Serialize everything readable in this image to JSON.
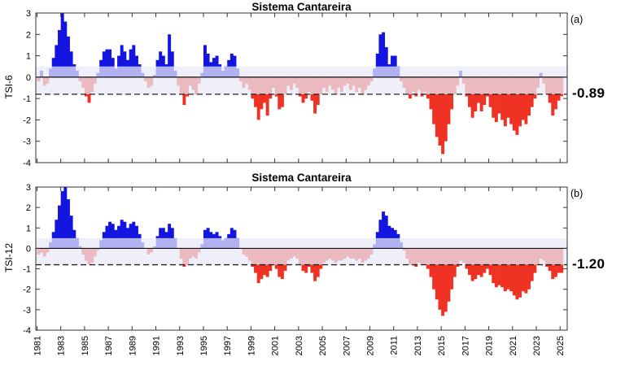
{
  "figure": {
    "background": "#ffffff"
  },
  "chart_data": [
    {
      "type": "bar",
      "panel_id": "a",
      "title": "Sistema Cantareira",
      "panel_label": "(a)",
      "ylabel": "TSI-6",
      "current_value_label": "-0.89",
      "ylim": [
        -4,
        3
      ],
      "yticks": [
        3,
        2,
        1,
        0,
        -1,
        -2,
        -3,
        -4
      ],
      "xlim": [
        1980.9,
        2025.6
      ],
      "xticks": [
        1981,
        1983,
        1985,
        1987,
        1989,
        1991,
        1993,
        1995,
        1997,
        1999,
        2001,
        2003,
        2005,
        2007,
        2009,
        2011,
        2013,
        2015,
        2017,
        2019,
        2021,
        2023,
        2025
      ],
      "x_start": 1981.0,
      "x_step": 0.25,
      "band": [
        -0.8,
        0.5
      ],
      "threshold": -0.8,
      "colors": {
        "positive": "#1414e0",
        "negative": "#f03224",
        "band": "#e9e9f8",
        "threshold": "#222222"
      },
      "values": [
        -0.2,
        0.3,
        -0.4,
        -0.3,
        0.4,
        0.9,
        1.5,
        2.2,
        3.0,
        2.6,
        1.9,
        1.2,
        0.6,
        0.3,
        -0.2,
        -0.5,
        -0.9,
        -1.2,
        -0.7,
        -0.3,
        0.2,
        0.8,
        1.2,
        1.3,
        1.3,
        0.9,
        0.4,
        1.0,
        1.5,
        1.2,
        0.8,
        1.3,
        1.5,
        1.0,
        0.6,
        0.2,
        -0.2,
        -0.5,
        -0.4,
        0.1,
        0.8,
        1.2,
        1.0,
        0.6,
        2.0,
        1.2,
        0.3,
        -0.4,
        -0.8,
        -1.3,
        -0.9,
        -0.4,
        -0.6,
        -0.8,
        -0.3,
        0.2,
        1.5,
        1.1,
        0.7,
        0.9,
        1.0,
        0.6,
        0.3,
        0.5,
        0.8,
        1.1,
        1.0,
        0.4,
        -0.2,
        -0.5,
        -0.3,
        -0.6,
        -1.0,
        -1.4,
        -2.0,
        -1.5,
        -1.2,
        -1.8,
        -1.0,
        -0.5,
        -0.9,
        -1.5,
        -1.4,
        -0.8,
        -0.4,
        -0.6,
        -0.3,
        -0.5,
        -0.9,
        -1.2,
        -1.0,
        -0.7,
        -1.1,
        -1.7,
        -1.3,
        -0.8,
        -0.5,
        -0.7,
        -0.4,
        -0.6,
        -0.8,
        -0.5,
        -0.7,
        -0.4,
        -0.3,
        -0.6,
        -0.4,
        -0.7,
        -0.5,
        -0.8,
        -0.6,
        -0.4,
        -0.2,
        0.4,
        1.1,
        2.0,
        2.1,
        1.4,
        0.6,
        1.0,
        1.0,
        0.5,
        -0.2,
        -0.5,
        -0.8,
        -1.0,
        -0.7,
        -0.9,
        -0.6,
        -0.9,
        -0.7,
        -1.0,
        -1.5,
        -2.2,
        -2.8,
        -3.2,
        -3.6,
        -3.0,
        -2.2,
        -1.5,
        -0.8,
        -0.4,
        0.3,
        -0.3,
        -0.9,
        -1.4,
        -1.9,
        -1.6,
        -1.2,
        -1.6,
        -1.3,
        -0.9,
        -1.4,
        -1.9,
        -2.1,
        -1.7,
        -2.0,
        -2.3,
        -1.9,
        -2.2,
        -2.5,
        -2.7,
        -2.3,
        -2.0,
        -2.2,
        -1.8,
        -1.4,
        -1.0,
        -0.5,
        0.2,
        -0.3,
        -0.8,
        -1.2,
        -1.8,
        -1.5,
        -1.1,
        -0.89
      ]
    },
    {
      "type": "bar",
      "panel_id": "b",
      "title": "Sistema Cantareira",
      "panel_label": "(b)",
      "ylabel": "TSI-12",
      "current_value_label": "-1.20",
      "ylim": [
        -4,
        3
      ],
      "yticks": [
        3,
        2,
        1,
        0,
        -1,
        -2,
        -3,
        -4
      ],
      "xlim": [
        1980.9,
        2025.6
      ],
      "xticks": [
        1981,
        1983,
        1985,
        1987,
        1989,
        1991,
        1993,
        1995,
        1997,
        1999,
        2001,
        2003,
        2005,
        2007,
        2009,
        2011,
        2013,
        2015,
        2017,
        2019,
        2021,
        2023,
        2025
      ],
      "x_start": 1981.0,
      "x_step": 0.25,
      "band": [
        -0.8,
        0.5
      ],
      "threshold": -0.8,
      "colors": {
        "positive": "#1414e0",
        "negative": "#f03224",
        "band": "#e9e9f8",
        "threshold": "#222222"
      },
      "values": [
        -0.3,
        -0.2,
        -0.4,
        -0.2,
        0.3,
        0.8,
        1.4,
        2.1,
        2.8,
        3.0,
        2.4,
        1.6,
        0.9,
        0.5,
        0.1,
        -0.3,
        -0.6,
        -0.8,
        -0.7,
        -0.4,
        -0.1,
        0.4,
        0.8,
        1.1,
        1.3,
        1.2,
        0.9,
        1.1,
        1.4,
        1.3,
        1.0,
        1.2,
        1.3,
        1.1,
        0.7,
        0.3,
        0.0,
        -0.3,
        -0.2,
        0.1,
        0.6,
        1.0,
        1.0,
        0.8,
        1.2,
        1.0,
        0.5,
        0.0,
        -0.5,
        -0.9,
        -0.8,
        -0.5,
        -0.4,
        -0.5,
        -0.2,
        0.2,
        0.9,
        1.0,
        0.8,
        0.7,
        0.8,
        0.6,
        0.4,
        0.5,
        0.7,
        1.0,
        0.9,
        0.5,
        0.0,
        -0.3,
        -0.4,
        -0.6,
        -0.9,
        -1.2,
        -1.7,
        -1.5,
        -1.3,
        -1.4,
        -1.1,
        -0.8,
        -1.0,
        -1.4,
        -1.5,
        -1.1,
        -0.6,
        -0.5,
        -0.4,
        -0.5,
        -0.8,
        -1.1,
        -1.2,
        -0.9,
        -1.2,
        -1.6,
        -1.4,
        -1.0,
        -0.7,
        -0.6,
        -0.5,
        -0.6,
        -0.7,
        -0.6,
        -0.6,
        -0.5,
        -0.4,
        -0.5,
        -0.5,
        -0.6,
        -0.5,
        -0.7,
        -0.6,
        -0.5,
        -0.3,
        0.2,
        0.8,
        1.4,
        1.8,
        1.6,
        1.1,
        1.0,
        0.9,
        0.7,
        0.3,
        -0.1,
        -0.5,
        -0.8,
        -0.8,
        -0.9,
        -0.7,
        -0.8,
        -0.8,
        -1.0,
        -1.4,
        -2.0,
        -2.5,
        -3.0,
        -3.3,
        -3.1,
        -2.6,
        -2.0,
        -1.4,
        -0.9,
        -0.6,
        -0.7,
        -1.0,
        -1.3,
        -1.6,
        -1.5,
        -1.3,
        -1.4,
        -1.2,
        -1.0,
        -1.3,
        -1.7,
        -1.9,
        -1.8,
        -1.9,
        -2.1,
        -2.0,
        -2.1,
        -2.3,
        -2.5,
        -2.4,
        -2.1,
        -2.2,
        -2.0,
        -1.6,
        -1.2,
        -0.8,
        -0.5,
        -0.6,
        -0.9,
        -1.1,
        -1.5,
        -1.4,
        -1.2,
        -1.2
      ]
    }
  ]
}
